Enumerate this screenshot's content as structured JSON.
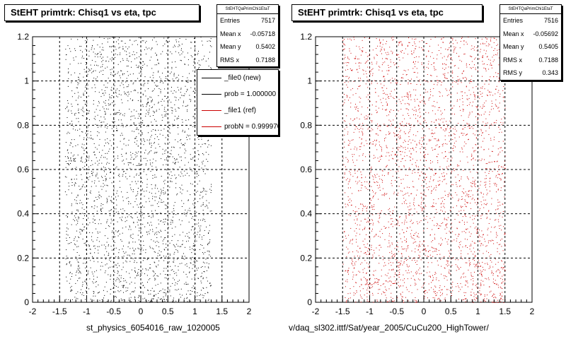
{
  "footer_text": "",
  "chart_data": [
    {
      "type": "scatter",
      "title": "StEHT primtrk: Chisq1 vs eta, tpc",
      "xlabel": "st_physics_6054016_raw_1020005",
      "ylabel": "",
      "xlim": [
        -2,
        2
      ],
      "ylim": [
        0,
        1.2
      ],
      "x_ticks": [
        "-2",
        "-1.5",
        "-1",
        "-0.5",
        "0",
        "0.5",
        "1",
        "1.5",
        "2"
      ],
      "y_ticks": [
        "0",
        "0.2",
        "0.4",
        "0.6",
        "0.8",
        "1",
        "1.2"
      ],
      "grid": true,
      "marker_color": "#000000",
      "x_distribution_range": [
        -1.4,
        1.3
      ],
      "stats": {
        "header": "StEHTQaPrimChi1EtaT",
        "rows": [
          {
            "label": "Entries",
            "value": "7517"
          },
          {
            "label": "Mean x",
            "value": "-0.05718"
          },
          {
            "label": "Mean y",
            "value": "0.5402"
          },
          {
            "label": "RMS x",
            "value": "0.7188"
          }
        ]
      },
      "legend": {
        "placement": "top-right",
        "entries": [
          {
            "text": "_file0 (new)",
            "color": "#000000"
          },
          {
            "text": "prob = 1.000000",
            "color": "#000000"
          },
          {
            "text": "_file1 (ref)",
            "color": "#cc0000"
          },
          {
            "text": "probN = 0.999970",
            "color": "#cc0000"
          }
        ]
      }
    },
    {
      "type": "scatter",
      "title": "StEHT primtrk: Chisq1 vs eta, tpc",
      "xlabel": "v/daq_sl302.ittf/Sat/year_2005/CuCu200_HighTower/",
      "ylabel": "",
      "xlim": [
        -2,
        2
      ],
      "ylim": [
        0,
        1.2
      ],
      "x_ticks": [
        "-2",
        "-1.5",
        "-1",
        "-0.5",
        "0",
        "0.5",
        "1",
        "1.5",
        "2"
      ],
      "y_ticks": [
        "0",
        "0.2",
        "0.4",
        "0.6",
        "0.8",
        "1",
        "1.2"
      ],
      "grid": true,
      "marker_color": "#cc0000",
      "x_distribution_range": [
        -1.5,
        1.5
      ],
      "stats": {
        "header": "StEHTQaPrimChi1EtaT",
        "rows": [
          {
            "label": "Entries",
            "value": "7516"
          },
          {
            "label": "Mean x",
            "value": "-0.05692"
          },
          {
            "label": "Mean y",
            "value": "0.5405"
          },
          {
            "label": "RMS x",
            "value": "0.7188"
          },
          {
            "label": "RMS y",
            "value": "0.343"
          }
        ]
      }
    }
  ]
}
